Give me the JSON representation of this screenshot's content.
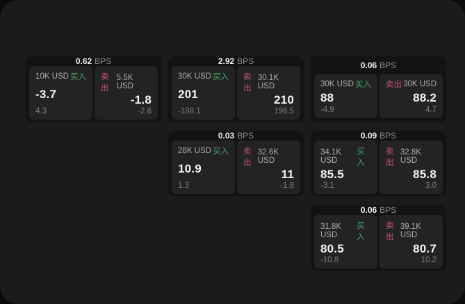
{
  "colors": {
    "backdrop": "#0b0b0c",
    "window_background": "#1b1b1c",
    "card_background": "#131314",
    "panel_background": "#232325",
    "buy_green": "#46a563",
    "sell_red": "#c9536a",
    "value_white": "#f4f4f5",
    "label_gray": "#aeaeb2",
    "dim_gray": "#7e7e83"
  },
  "cards": [
    {
      "bps_value": "0.62",
      "bps_unit": "BPS",
      "buy": {
        "amount": "10K USD",
        "side_label": "买入",
        "price": "-3.7",
        "delta": "4.3"
      },
      "sell": {
        "side_label": "卖出",
        "amount": "5.5K USD",
        "price": "-1.8",
        "delta": "-2.6"
      }
    },
    {
      "bps_value": "2.92",
      "bps_unit": "BPS",
      "buy": {
        "amount": "30K USD",
        "side_label": "买入",
        "price": "201",
        "delta": "-188.1"
      },
      "sell": {
        "side_label": "卖出",
        "amount": "30.1K USD",
        "price": "210",
        "delta": "196.5"
      }
    },
    {
      "bps_value": "0.06",
      "bps_unit": "BPS",
      "buy": {
        "amount": "30K USD",
        "side_label": "买入",
        "price": "88",
        "delta": "-4.9"
      },
      "sell": {
        "side_label": "卖出",
        "amount": "30K USD",
        "price": "88.2",
        "delta": "4.7"
      }
    },
    {
      "bps_value": "0.03",
      "bps_unit": "BPS",
      "buy": {
        "amount": "28K USD",
        "side_label": "买入",
        "price": "10.9",
        "delta": "1.3"
      },
      "sell": {
        "side_label": "卖出",
        "amount": "32.6K USD",
        "price": "11",
        "delta": "-1.8"
      }
    },
    {
      "bps_value": "0.09",
      "bps_unit": "BPS",
      "buy": {
        "amount": "34.1K USD",
        "side_label": "买入",
        "price": "85.5",
        "delta": "-3.1"
      },
      "sell": {
        "side_label": "卖出",
        "amount": "32.8K USD",
        "price": "85.8",
        "delta": "3.0"
      }
    },
    {
      "bps_value": "0.06",
      "bps_unit": "BPS",
      "buy": {
        "amount": "31.8K USD",
        "side_label": "买入",
        "price": "80.5",
        "delta": "-10.8"
      },
      "sell": {
        "side_label": "卖出",
        "amount": "39.1K USD",
        "price": "80.7",
        "delta": "10.2"
      }
    }
  ]
}
